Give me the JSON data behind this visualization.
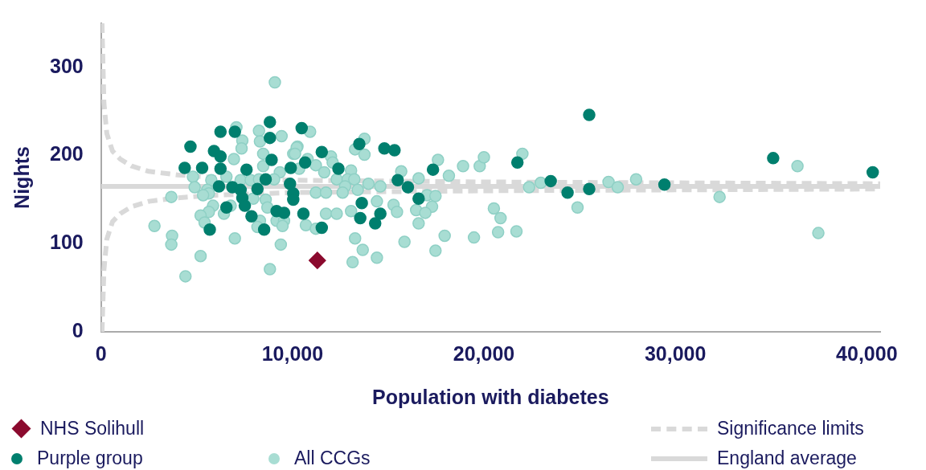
{
  "chart_data": {
    "type": "scatter",
    "xlabel": "Population with diabetes",
    "ylabel": "Nights",
    "xlim": [
      0,
      40700
    ],
    "ylim": [
      0,
      350
    ],
    "xticks": [
      0,
      {
        "value": 10000,
        "label": "10,000"
      },
      {
        "value": 20000,
        "label": "20,000"
      },
      {
        "value": 30000,
        "label": "30,000"
      },
      {
        "value": 40000,
        "label": "40,000"
      }
    ],
    "yticks": [
      0,
      100,
      200,
      300
    ],
    "grid": false,
    "legend": "bottom",
    "series": [
      {
        "name": "Significance limits",
        "type": "line",
        "marker": "none",
        "line_style": "dashed",
        "color": "#d9d9d9",
        "x": [
          50,
          150,
          300,
          600,
          1000,
          1600,
          2500,
          4000,
          6000,
          10000,
          15000,
          20000,
          30000,
          40700
        ],
        "values": [
          350,
          260,
          225,
          205,
          196,
          188,
          182,
          178,
          175,
          172,
          171,
          170,
          169,
          168
        ]
      },
      {
        "type": "line",
        "marker": "none",
        "line_style": "dashed",
        "color": "#d9d9d9",
        "x": [
          50,
          150,
          300,
          600,
          1000,
          1600,
          2500,
          4000,
          6000,
          10000,
          15000,
          20000,
          30000,
          40700
        ],
        "values": [
          0,
          70,
          105,
          125,
          134,
          142,
          148,
          152,
          155,
          158,
          159,
          160,
          161,
          162
        ]
      },
      {
        "name": "England average",
        "type": "line",
        "marker": "none",
        "line_style": "solid",
        "color": "#d9d9d9",
        "x": [
          0,
          40700
        ],
        "values": [
          165,
          165
        ]
      },
      {
        "name": "All CCGs",
        "type": "scatter",
        "marker": "circle",
        "color": "#a8ddd3",
        "x": [
          9080,
          7070,
          8250,
          9430,
          7380,
          8300,
          7340,
          8470,
          10260,
          10040,
          6940,
          8470,
          9340,
          10350,
          4800,
          5760,
          6550,
          7290,
          7820,
          8250,
          9040,
          4890,
          5550,
          5630,
          5330,
          3670,
          5850,
          5630,
          5200,
          6420,
          5410,
          6770,
          7950,
          8600,
          8690,
          8300,
          8170,
          9170,
          9560,
          9480,
          2790,
          3710,
          3670,
          6990,
          9390,
          5200,
          4410,
          8820,
          10920,
          13760,
          13270,
          13760,
          10220,
          10130,
          10790,
          12010,
          11220,
          12100,
          11660,
          13060,
          12310,
          12880,
          13230,
          12750,
          13410,
          12620,
          13970,
          14590,
          11220,
          11750,
          17600,
          18910,
          19780,
          20000,
          15680,
          18170,
          16590,
          14410,
          15280,
          15460,
          16460,
          17030,
          17470,
          17290,
          16940,
          16590,
          13060,
          11750,
          12310,
          10700,
          11220,
          13270,
          13670,
          13140,
          14410,
          15850,
          17470,
          17950,
          19480,
          20520,
          20870,
          20740,
          22010,
          22360,
          22970,
          24890,
          26510,
          26990,
          27950,
          32310,
          36380,
          37470,
          21700
        ],
        "values": [
          283,
          232,
          228,
          222,
          217,
          216,
          208,
          202,
          210,
          202,
          196,
          188,
          181,
          185,
          176,
          172,
          176,
          172,
          172,
          173,
          173,
          164,
          161,
          157,
          155,
          153,
          143,
          136,
          132,
          134,
          124,
          143,
          151,
          150,
          141,
          126,
          119,
          126,
          126,
          120,
          120,
          109,
          99,
          106,
          99,
          86,
          63,
          71,
          227,
          219,
          207,
          201,
          209,
          202,
          196,
          199,
          189,
          192,
          181,
          183,
          173,
          173,
          173,
          165,
          161,
          158,
          168,
          165,
          158,
          158,
          195,
          188,
          188,
          198,
          182,
          177,
          174,
          148,
          144,
          136,
          138,
          155,
          154,
          142,
          135,
          123,
          137,
          134,
          134,
          121,
          117,
          106,
          93,
          79,
          84,
          102,
          92,
          109,
          107,
          140,
          129,
          113,
          202,
          164,
          169,
          141,
          170,
          164,
          173,
          153,
          188,
          112,
          114
        ]
      },
      {
        "name": "Purple group",
        "type": "scatter",
        "marker": "circle",
        "color": "#007f6e",
        "x": [
          4670,
          4370,
          5280,
          6240,
          6990,
          8820,
          8820,
          10480,
          5900,
          6240,
          6240,
          7600,
          8910,
          9910,
          8600,
          9870,
          10660,
          6160,
          6860,
          7290,
          8170,
          7380,
          7510,
          6550,
          10040,
          10040,
          7860,
          9170,
          9560,
          10570,
          5680,
          8520,
          11530,
          12400,
          13490,
          14800,
          15330,
          15500,
          16030,
          17340,
          16590,
          13620,
          14590,
          13540,
          14320,
          11530,
          25500,
          21750,
          23490,
          24370,
          25500,
          29430,
          35110,
          40310
        ],
        "values": [
          210,
          186,
          186,
          227,
          227,
          238,
          220,
          231,
          205,
          199,
          185,
          184,
          195,
          186,
          173,
          168,
          192,
          165,
          164,
          161,
          162,
          152,
          143,
          141,
          157,
          150,
          131,
          137,
          135,
          134,
          116,
          116,
          204,
          185,
          213,
          208,
          206,
          172,
          164,
          184,
          151,
          146,
          134,
          129,
          123,
          118,
          246,
          192,
          171,
          158,
          162,
          167,
          197,
          181
        ]
      },
      {
        "name": "NHS Solihull",
        "type": "scatter",
        "marker": "diamond",
        "color": "#8b0a2e",
        "x": [
          11300
        ],
        "values": [
          81
        ]
      }
    ]
  }
}
